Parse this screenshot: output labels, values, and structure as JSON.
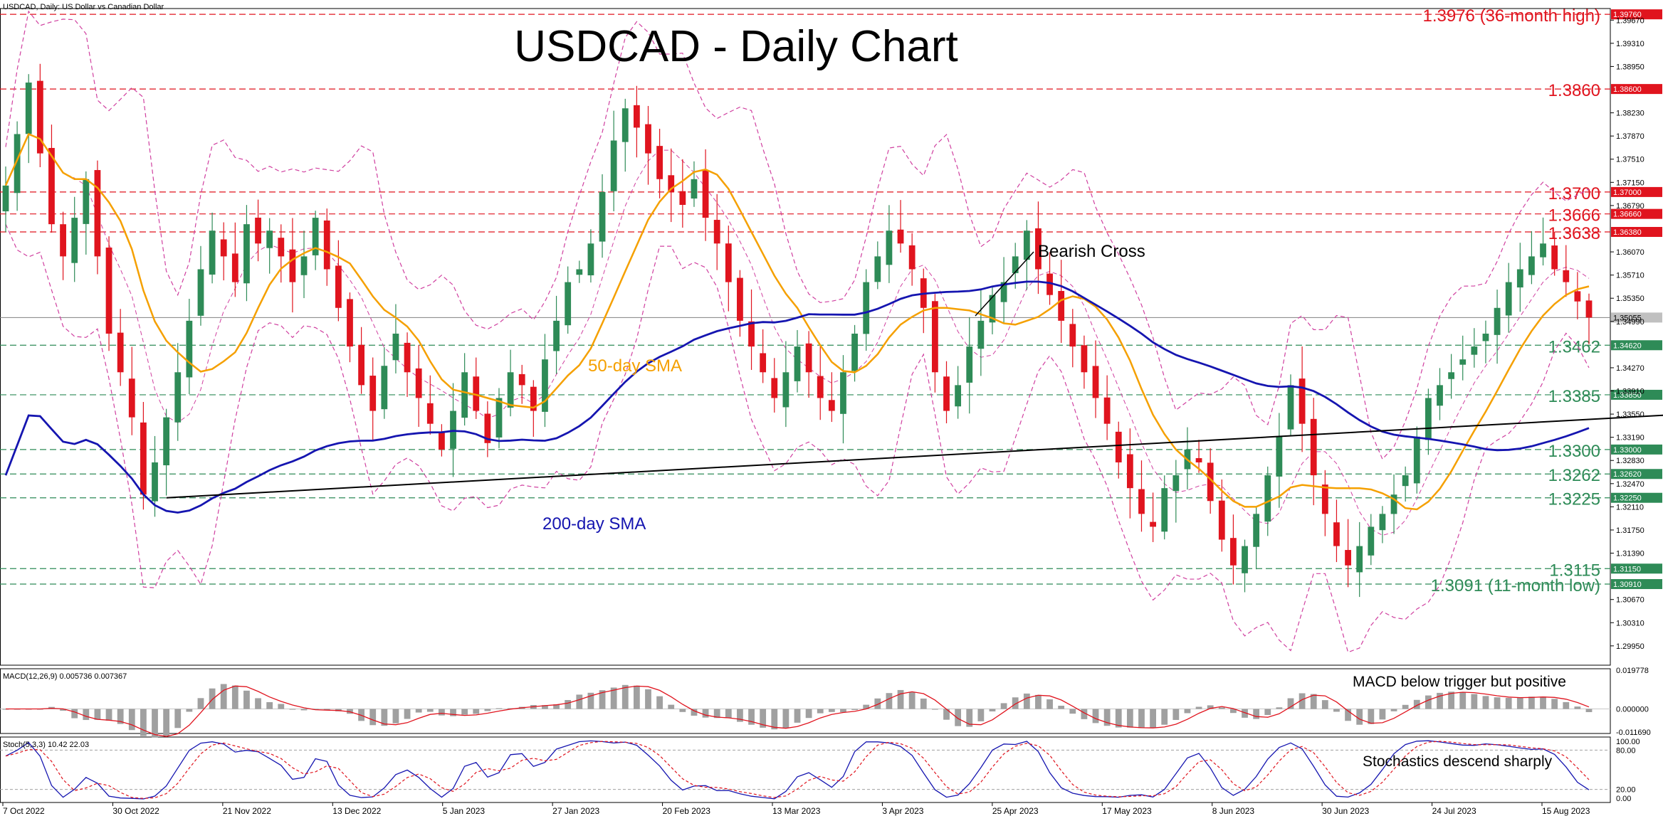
{
  "header": {
    "symbol_line": "USDCAD, Daily:  US Dollar vs Canadian Dollar",
    "title": "USDCAD - Daily Chart"
  },
  "colors": {
    "bull": "#2e8b57",
    "bear": "#e0141e",
    "sma50": "#f5a000",
    "sma200": "#1515b0",
    "bollinger": "#d040a0",
    "resistance": "#e0141e",
    "support": "#2e8b57",
    "trendline": "#000000",
    "macd_hist": "#a0a0a0",
    "macd_signal": "#e0141e",
    "stoch_main": "#1515b0",
    "stoch_signal": "#e0141e"
  },
  "chart_data": {
    "type": "candlestick",
    "title": "USDCAD - Daily Chart",
    "ylim": [
      1.2965,
      1.3985
    ],
    "x_labels": [
      "7 Oct 2022",
      "30 Oct 2022",
      "21 Nov 2022",
      "13 Dec 2022",
      "5 Jan 2023",
      "27 Jan 2023",
      "20 Feb 2023",
      "13 Mar 2023",
      "3 Apr 2023",
      "25 Apr 2023",
      "17 May 2023",
      "8 Jun 2023",
      "30 Jun 2023",
      "24 Jul 2023",
      "15 Aug 2023"
    ],
    "y_ticks": [
      "1.39670",
      "1.39310",
      "1.38950",
      "1.38230",
      "1.37870",
      "1.37510",
      "1.37150",
      "1.36790",
      "1.36070",
      "1.35710",
      "1.35350",
      "1.34990",
      "1.34270",
      "1.33910",
      "1.33550",
      "1.33190",
      "1.32830",
      "1.32470",
      "1.32110",
      "1.31750",
      "1.31390",
      "1.30670",
      "1.30310",
      "1.29950"
    ],
    "y_ticks_values": [
      1.3967,
      1.3931,
      1.3895,
      1.3823,
      1.3787,
      1.3751,
      1.3715,
      1.3679,
      1.3607,
      1.3571,
      1.3535,
      1.3499,
      1.3427,
      1.3391,
      1.3355,
      1.3319,
      1.3283,
      1.3247,
      1.3211,
      1.3175,
      1.3139,
      1.3067,
      1.3031,
      1.2995
    ],
    "current_price": {
      "value": 1.3505,
      "label": "1.35055"
    },
    "resistance_levels": [
      {
        "value": 1.3976,
        "axis_label": "1.39760",
        "text": "1.3976 (36-month high)"
      },
      {
        "value": 1.386,
        "axis_label": "1.38600",
        "text": "1.3860"
      },
      {
        "value": 1.37,
        "axis_label": "1.37000",
        "text": "1.3700"
      },
      {
        "value": 1.3666,
        "axis_label": "1.36660",
        "text": "1.3666"
      },
      {
        "value": 1.3638,
        "axis_label": "1.36380",
        "text": "1.3638"
      }
    ],
    "support_levels": [
      {
        "value": 1.3462,
        "axis_label": "1.34620",
        "text": "1.3462"
      },
      {
        "value": 1.3385,
        "axis_label": "1.33850",
        "text": "1.3385"
      },
      {
        "value": 1.33,
        "axis_label": "1.33000",
        "text": "1.3300"
      },
      {
        "value": 1.3262,
        "axis_label": "1.32620",
        "text": "1.3262"
      },
      {
        "value": 1.3225,
        "axis_label": "1.32250",
        "text": "1.3225"
      },
      {
        "value": 1.3115,
        "axis_label": "1.31150",
        "text": "1.3115"
      },
      {
        "value": 1.3091,
        "axis_label": "1.30910",
        "text": "1.3091 (11-month low)"
      }
    ],
    "close_path": [
      1.371,
      1.379,
      1.387,
      1.376,
      1.365,
      1.36,
      1.366,
      1.372,
      1.36,
      1.348,
      1.342,
      1.335,
      1.323,
      1.328,
      1.335,
      1.342,
      1.35,
      1.358,
      1.364,
      1.36,
      1.356,
      1.365,
      1.362,
      1.364,
      1.36,
      1.356,
      1.36,
      1.366,
      1.358,
      1.352,
      1.346,
      1.34,
      1.336,
      1.343,
      1.348,
      1.342,
      1.338,
      1.334,
      1.33,
      1.336,
      1.342,
      1.336,
      1.331,
      1.338,
      1.342,
      1.34,
      1.336,
      1.344,
      1.35,
      1.356,
      1.358,
      1.362,
      1.37,
      1.378,
      1.383,
      1.38,
      1.376,
      1.372,
      1.37,
      1.368,
      1.372,
      1.366,
      1.362,
      1.356,
      1.35,
      1.346,
      1.342,
      1.338,
      1.342,
      1.346,
      1.342,
      1.338,
      1.336,
      1.342,
      1.348,
      1.356,
      1.36,
      1.364,
      1.362,
      1.358,
      1.352,
      1.342,
      1.336,
      1.34,
      1.346,
      1.35,
      1.354,
      1.356,
      1.36,
      1.364,
      1.358,
      1.354,
      1.35,
      1.346,
      1.342,
      1.338,
      1.334,
      1.328,
      1.324,
      1.32,
      1.318,
      1.324,
      1.326,
      1.33,
      1.328,
      1.322,
      1.316,
      1.312,
      1.315,
      1.32,
      1.326,
      1.332,
      1.34,
      1.334,
      1.326,
      1.32,
      1.315,
      1.312,
      1.315,
      1.318,
      1.32,
      1.323,
      1.326,
      1.332,
      1.338,
      1.34,
      1.342,
      1.344,
      1.346,
      1.348,
      1.352,
      1.356,
      1.358,
      1.36,
      1.362,
      1.358,
      1.356,
      1.353,
      1.3505
    ],
    "trendline": {
      "start": {
        "index": 14,
        "value": 1.3225
      },
      "end": {
        "index": 182,
        "value": 1.339
      }
    },
    "annotations": [
      {
        "id": "bearish-cross",
        "text": "Bearish Cross"
      },
      {
        "id": "sma50-label",
        "text": "50-day SMA"
      },
      {
        "id": "sma200-label",
        "text": "200-day SMA"
      }
    ],
    "grid": false
  },
  "macd": {
    "label": "MACD(12,26,9) 0.005736 0.007367",
    "axis_ticks": [
      "0.019778",
      "0.000000",
      "-0.011690"
    ],
    "ylim": [
      -0.0125,
      0.0205
    ],
    "annotation": "MACD below trigger but positive"
  },
  "stoch": {
    "label": "Stoch(5,3,3) 10.42 22.03",
    "axis_ticks": [
      "100.00",
      "80.00",
      "20.00",
      "0.00"
    ],
    "ylim": [
      0,
      100
    ],
    "annotation": "Stochastics descend sharply"
  }
}
